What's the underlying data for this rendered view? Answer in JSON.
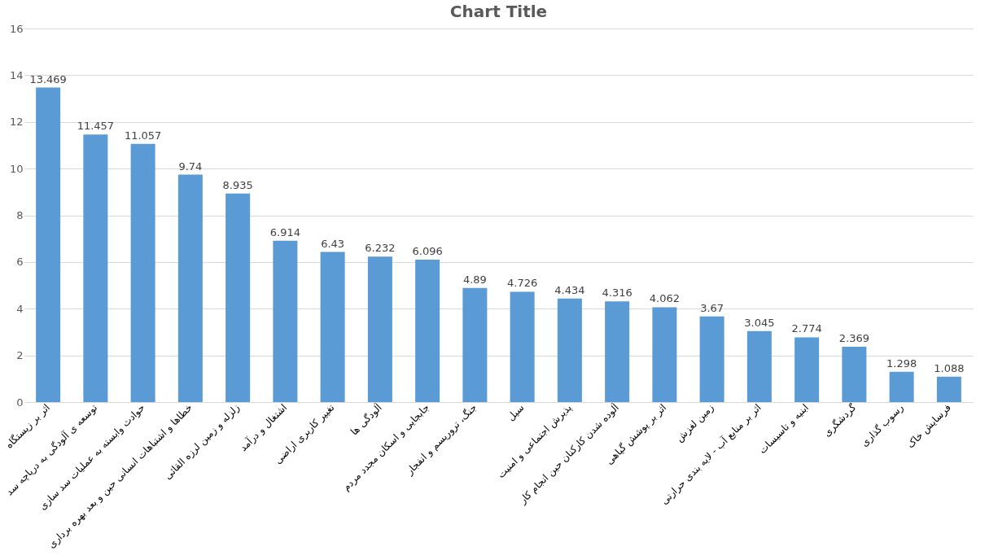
{
  "chart_data": {
    "type": "bar",
    "title": "Chart Title",
    "categories": [
      "اثر بر زیستگاه",
      "توسعه ی آلودگی به دریاچه سد",
      "حوادث وابسته به عملیات سد سازی",
      "خطاها و اشتباهات انسانی حین و بعد بهره برداری",
      "زلزله و زمین لرزه القائی",
      "اشتغال و درآمد",
      "تغییر کاربری اراضی",
      "آلودگی ها",
      "جابجایی و اسکان مجدد مردم",
      "جنگ، تروریسم و انفجار",
      "سیل",
      "پذیرش اجتماعی و امنیت",
      "آلوده شدن کارکنان حین انجام کار",
      "اثر بر پوشش گیاهی",
      "زمین لغزش",
      "اثر بر منابع آب - لایه بندی حرارتی",
      "ابنیه و تاسیسات",
      "گردشگری",
      "رسوب گذاری",
      "فرسایش خاک"
    ],
    "values": [
      13.469,
      11.457,
      11.057,
      9.74,
      8.935,
      6.914,
      6.43,
      6.232,
      6.096,
      4.89,
      4.726,
      4.434,
      4.316,
      4.062,
      3.67,
      3.045,
      2.774,
      2.369,
      1.298,
      1.088
    ],
    "color": "#5b9bd5",
    "ylim": [
      0,
      16
    ],
    "yticks": [
      0,
      2,
      4,
      6,
      8,
      10,
      12,
      14,
      16
    ],
    "grid": "y",
    "data_labels": true
  }
}
